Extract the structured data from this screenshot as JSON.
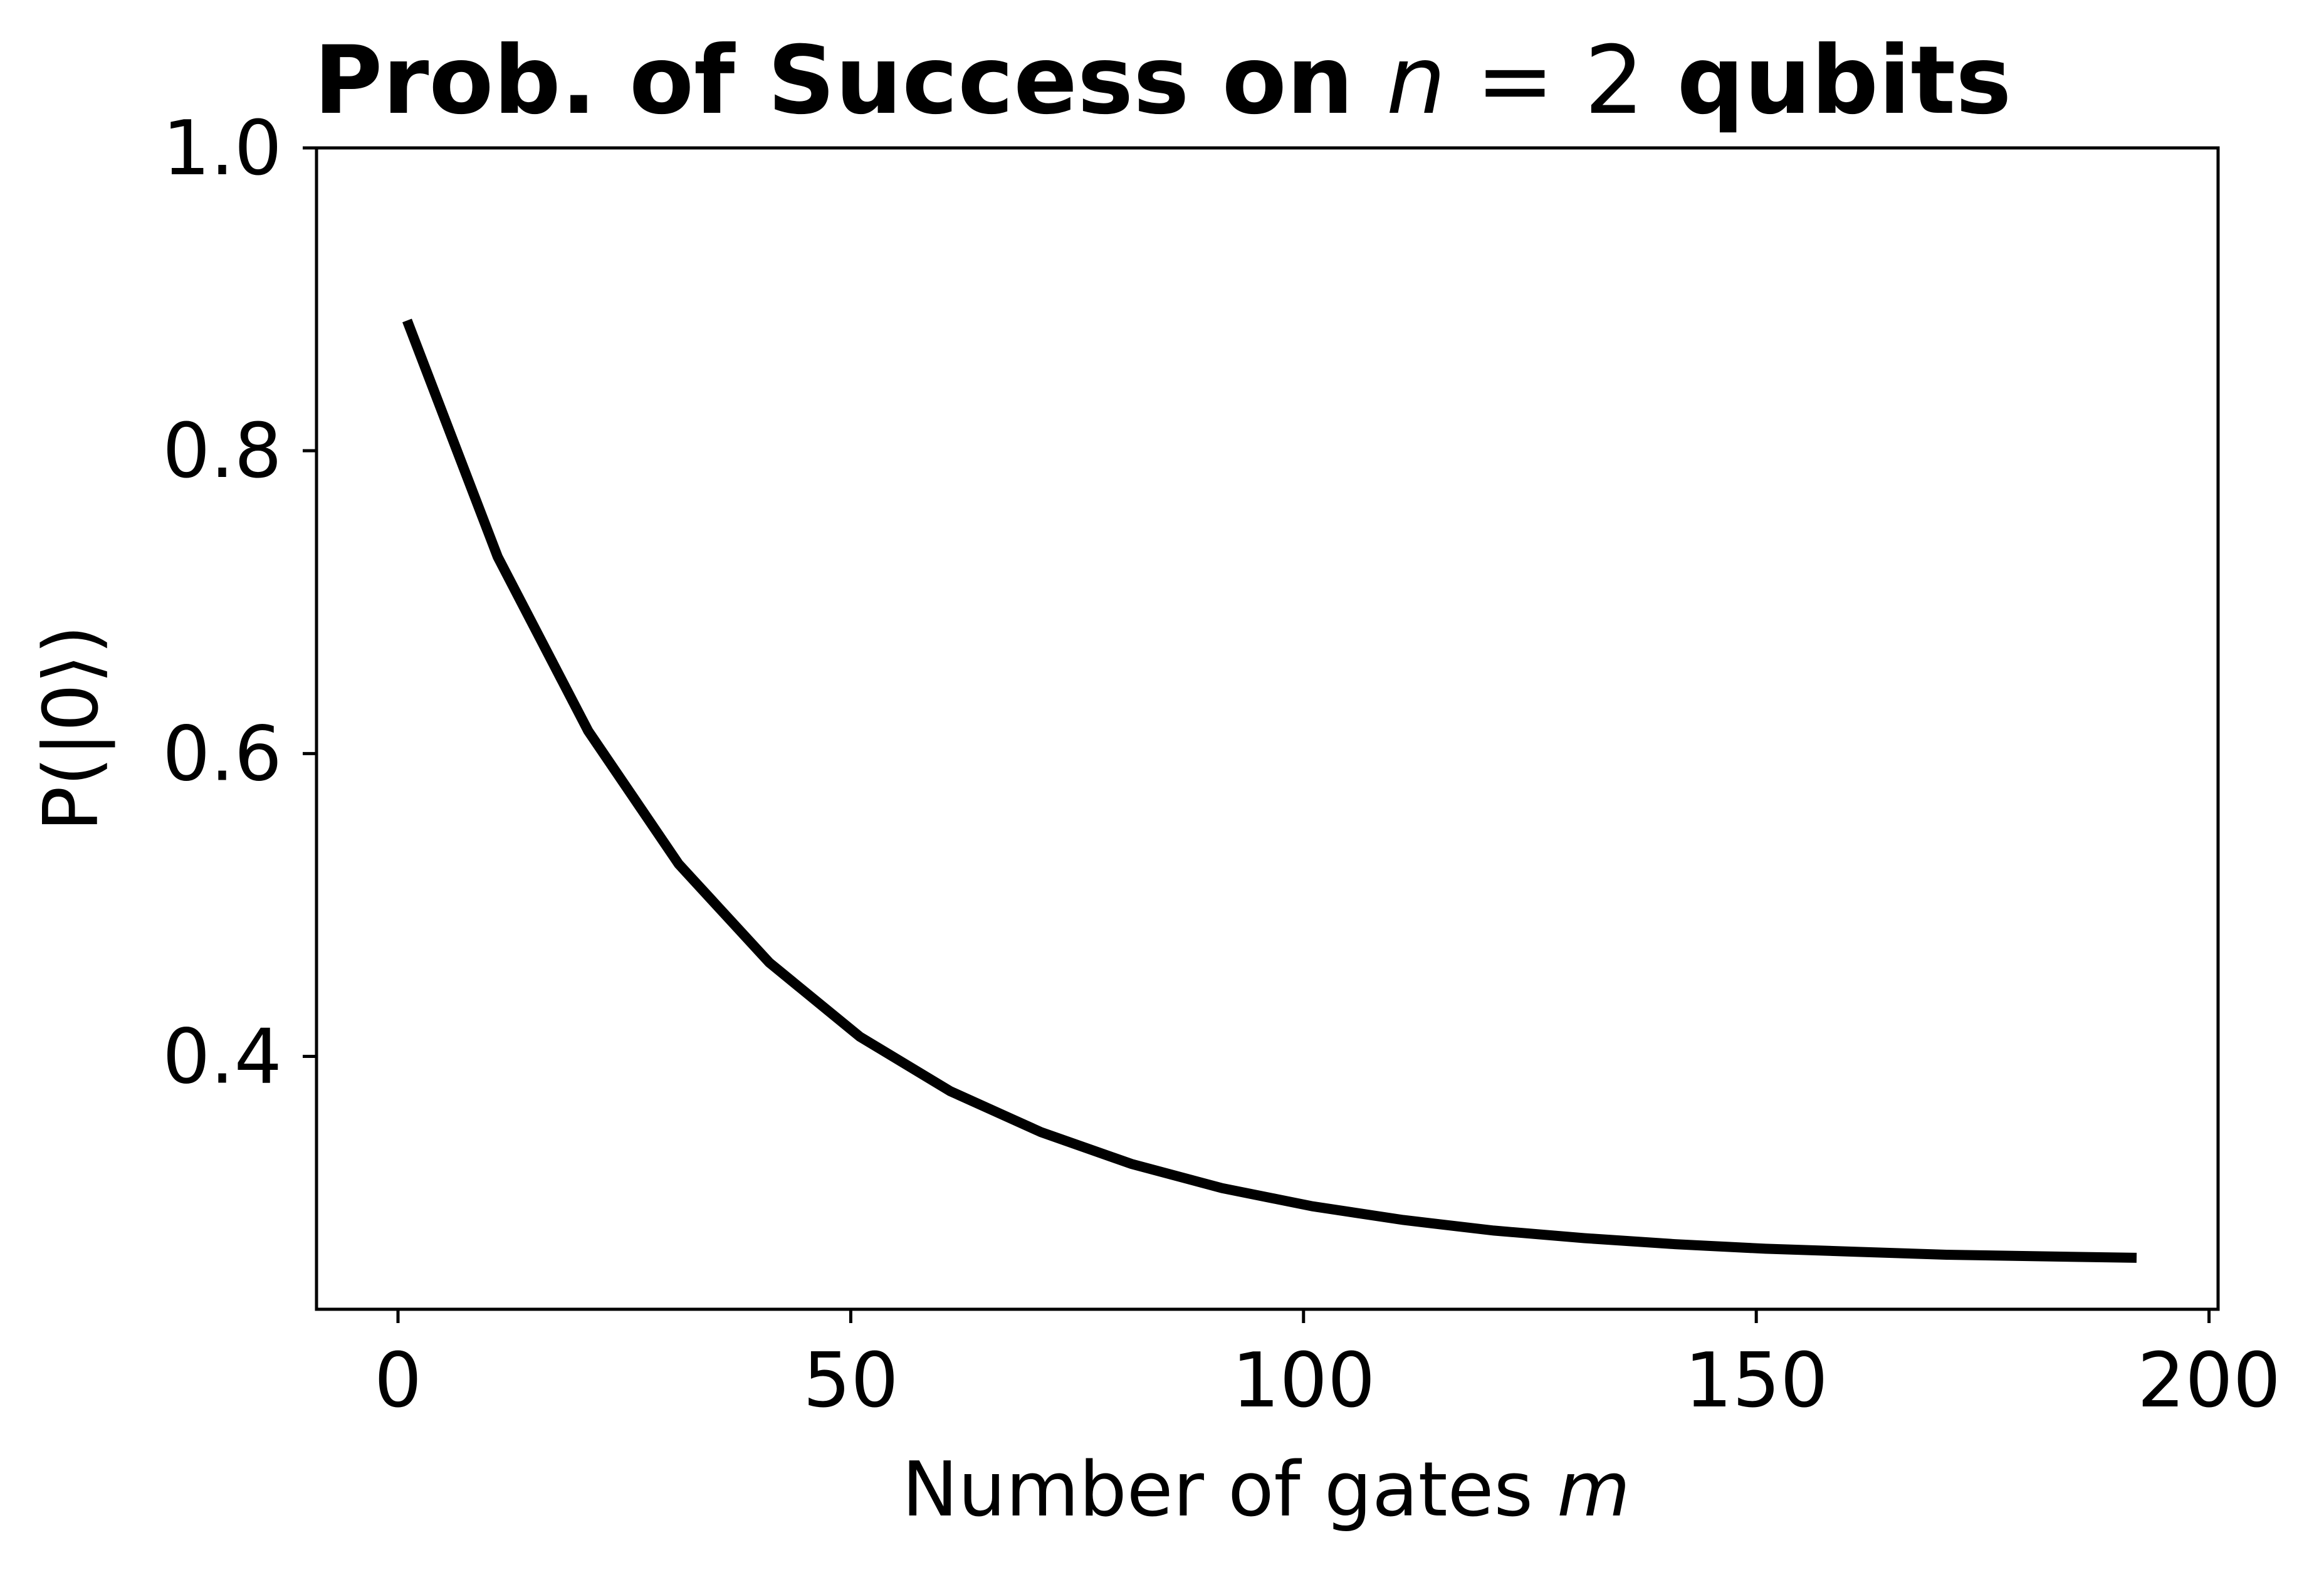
{
  "chart_data": {
    "type": "line",
    "title": {
      "prefix": "Prob. of Success on ",
      "var": "n",
      "relation": " = 2",
      "suffix": " qubits"
    },
    "xlabel": {
      "text": "Number of gates ",
      "var": "m"
    },
    "ylabel": "P(|0⟩)",
    "xlim": [
      -9,
      201
    ],
    "ylim": [
      0.233,
      1.0
    ],
    "xticks": [
      0,
      50,
      100,
      150,
      200
    ],
    "xtick_labels": [
      "0",
      "50",
      "100",
      "150",
      "200"
    ],
    "yticks": [
      0.4,
      0.6,
      0.8,
      1.0
    ],
    "ytick_labels": [
      "0.4",
      "0.6",
      "0.8",
      "1.0"
    ],
    "grid": false,
    "line_color": "#000000",
    "series": [
      {
        "x": [
          1,
          11,
          21,
          31,
          41,
          51,
          61,
          71,
          81,
          91,
          101,
          111,
          121,
          131,
          141,
          151,
          161,
          171,
          181,
          192
        ],
        "y": [
          0.886,
          0.73,
          0.615,
          0.527,
          0.462,
          0.413,
          0.377,
          0.35,
          0.329,
          0.313,
          0.301,
          0.292,
          0.285,
          0.28,
          0.276,
          0.273,
          0.271,
          0.269,
          0.268,
          0.267
        ]
      }
    ]
  }
}
